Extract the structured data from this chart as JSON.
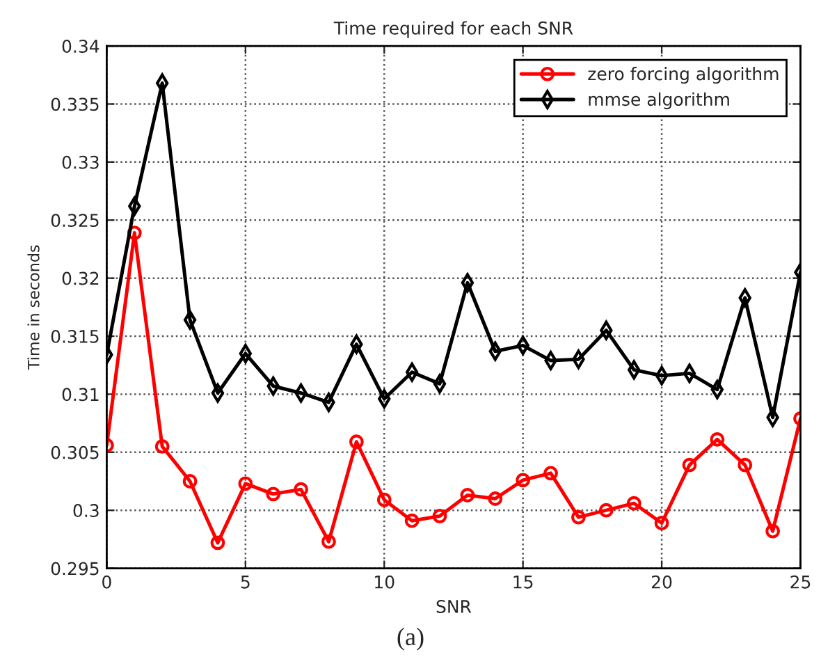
{
  "chart_data": {
    "type": "line",
    "title": "Time required for each SNR",
    "xlabel": "SNR",
    "ylabel": "Time in seconds",
    "x": [
      0,
      1,
      2,
      3,
      4,
      5,
      6,
      7,
      8,
      9,
      10,
      11,
      12,
      13,
      14,
      15,
      16,
      17,
      18,
      19,
      20,
      21,
      22,
      23,
      24,
      25
    ],
    "series": [
      {
        "name": "zero forcing algorithm",
        "color": "#ff0000",
        "marker": "circle",
        "values": [
          0.3056,
          0.3239,
          0.3055,
          0.3025,
          0.2972,
          0.3023,
          0.3014,
          0.3018,
          0.2973,
          0.3059,
          0.3009,
          0.2991,
          0.2995,
          0.3013,
          0.301,
          0.3026,
          0.3032,
          0.2994,
          0.3,
          0.3006,
          0.2989,
          0.3039,
          0.3061,
          0.3039,
          0.2982,
          0.3079
        ]
      },
      {
        "name": "mmse algorithm",
        "color": "#000000",
        "marker": "diamond",
        "values": [
          0.3134,
          0.3262,
          0.3368,
          0.3164,
          0.3101,
          0.3135,
          0.3107,
          0.3101,
          0.3093,
          0.3143,
          0.3096,
          0.3119,
          0.3109,
          0.3196,
          0.3137,
          0.3142,
          0.3129,
          0.313,
          0.3155,
          0.3121,
          0.3116,
          0.3118,
          0.3104,
          0.3183,
          0.308,
          0.3205
        ]
      }
    ],
    "xlim": [
      0,
      25
    ],
    "xticks": [
      0,
      5,
      10,
      15,
      20,
      25
    ],
    "ylim": [
      0.295,
      0.34
    ],
    "yticks": [
      0.295,
      0.3,
      0.305,
      0.31,
      0.315,
      0.32,
      0.325,
      0.33,
      0.335,
      0.34
    ],
    "grid": true,
    "legend": "top right",
    "line_style": "solid",
    "annotations": [
      "(a)"
    ]
  }
}
